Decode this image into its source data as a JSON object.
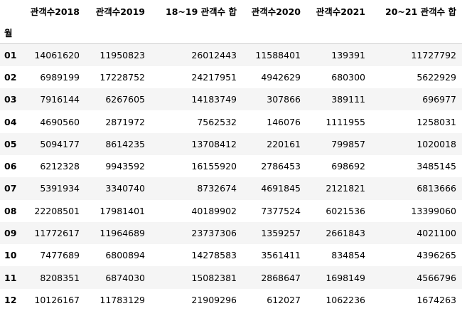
{
  "table": {
    "index_name": "월",
    "columns": [
      "관객수2018",
      "관객수2019",
      "18~19 관객수 합",
      "관객수2020",
      "관객수2021",
      "20~21 관객수 합"
    ],
    "rows": [
      {
        "index": "01",
        "values": [
          "14061620",
          "11950823",
          "26012443",
          "11588401",
          "139391",
          "11727792"
        ]
      },
      {
        "index": "02",
        "values": [
          "6989199",
          "17228752",
          "24217951",
          "4942629",
          "680300",
          "5622929"
        ]
      },
      {
        "index": "03",
        "values": [
          "7916144",
          "6267605",
          "14183749",
          "307866",
          "389111",
          "696977"
        ]
      },
      {
        "index": "04",
        "values": [
          "4690560",
          "2871972",
          "7562532",
          "146076",
          "1111955",
          "1258031"
        ]
      },
      {
        "index": "05",
        "values": [
          "5094177",
          "8614235",
          "13708412",
          "220161",
          "799857",
          "1020018"
        ]
      },
      {
        "index": "06",
        "values": [
          "6212328",
          "9943592",
          "16155920",
          "2786453",
          "698692",
          "3485145"
        ]
      },
      {
        "index": "07",
        "values": [
          "5391934",
          "3340740",
          "8732674",
          "4691845",
          "2121821",
          "6813666"
        ]
      },
      {
        "index": "08",
        "values": [
          "22208501",
          "17981401",
          "40189902",
          "7377524",
          "6021536",
          "13399060"
        ]
      },
      {
        "index": "09",
        "values": [
          "11772617",
          "11964689",
          "23737306",
          "1359257",
          "2661843",
          "4021100"
        ]
      },
      {
        "index": "10",
        "values": [
          "7477689",
          "6800894",
          "14278583",
          "3561411",
          "834854",
          "4396265"
        ]
      },
      {
        "index": "11",
        "values": [
          "8208351",
          "6874030",
          "15082381",
          "2868647",
          "1698149",
          "4566796"
        ]
      },
      {
        "index": "12",
        "values": [
          "10126167",
          "11783129",
          "21909296",
          "612027",
          "1062236",
          "1674263"
        ]
      }
    ]
  }
}
